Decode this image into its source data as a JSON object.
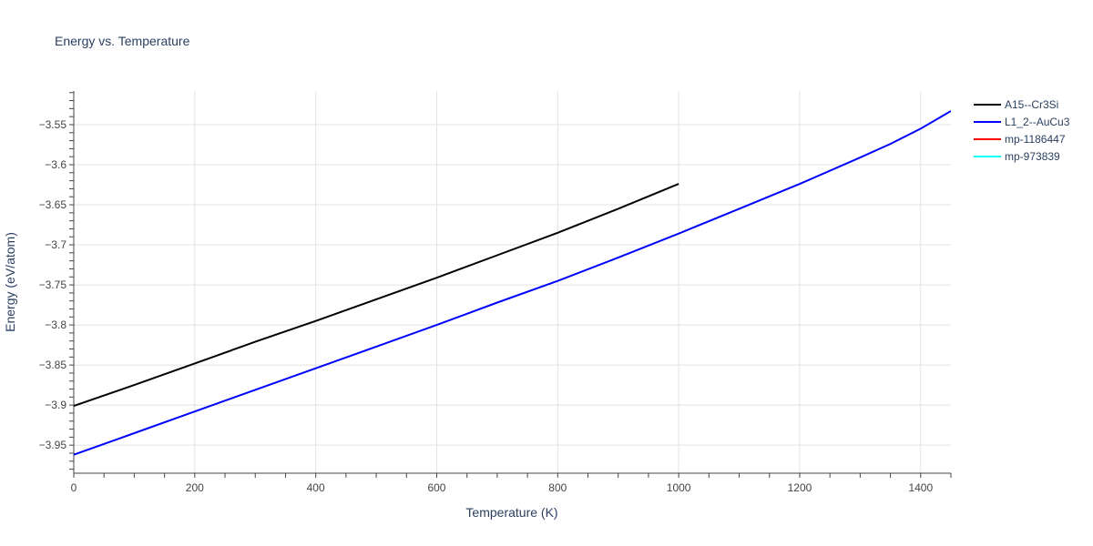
{
  "chart_data": {
    "type": "line",
    "title": "Energy vs. Temperature",
    "xlabel": "Temperature (K)",
    "ylabel": "Energy (eV/atom)",
    "xlim": [
      0,
      1450
    ],
    "ylim": [
      -3.985,
      -3.508
    ],
    "x_ticks": [
      0,
      200,
      400,
      600,
      800,
      1000,
      1200,
      1400
    ],
    "x_tick_labels": [
      "0",
      "200",
      "400",
      "600",
      "800",
      "1000",
      "1200",
      "1400"
    ],
    "y_ticks": [
      -3.95,
      -3.9,
      -3.85,
      -3.8,
      -3.75,
      -3.7,
      -3.65,
      -3.6,
      -3.55
    ],
    "y_tick_labels": [
      "−3.95",
      "−3.9",
      "−3.85",
      "−3.8",
      "−3.75",
      "−3.7",
      "−3.65",
      "−3.6",
      "−3.55"
    ],
    "grid": true,
    "legend_position": "top-right outside",
    "series": [
      {
        "name": "A15--Cr3Si",
        "color": "#000000",
        "x": [
          0,
          100,
          200,
          300,
          400,
          500,
          600,
          700,
          800,
          900,
          1000
        ],
        "y": [
          -3.901,
          -3.875,
          -3.848,
          -3.821,
          -3.795,
          -3.768,
          -3.741,
          -3.713,
          -3.685,
          -3.655,
          -3.624
        ]
      },
      {
        "name": "L1_2--AuCu3",
        "color": "#0000ff",
        "x": [
          0,
          100,
          200,
          300,
          400,
          500,
          600,
          700,
          800,
          900,
          1000,
          1100,
          1200,
          1300,
          1350,
          1400,
          1450
        ],
        "y": [
          -3.962,
          -3.935,
          -3.908,
          -3.881,
          -3.854,
          -3.827,
          -3.8,
          -3.772,
          -3.745,
          -3.716,
          -3.686,
          -3.655,
          -3.624,
          -3.591,
          -3.574,
          -3.555,
          -3.533
        ]
      },
      {
        "name": "mp-1186447",
        "color": "#ff0000",
        "x": [],
        "y": []
      },
      {
        "name": "mp-973839",
        "color": "#00ffff",
        "x": [],
        "y": []
      }
    ]
  }
}
